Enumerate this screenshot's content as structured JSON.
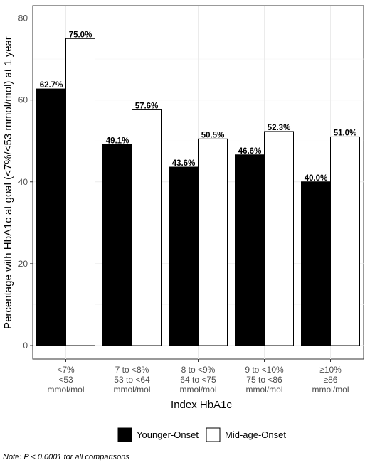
{
  "chart_data": {
    "type": "bar",
    "categories": [
      [
        "<7%",
        "<53",
        "mmol/mol"
      ],
      [
        "7 to <8%",
        "53 to <64",
        "mmol/mol"
      ],
      [
        "8 to <9%",
        "64 to <75",
        "mmol/mol"
      ],
      [
        "9 to <10%",
        "75 to <86",
        "mmol/mol"
      ],
      [
        "≥10%",
        "≥86",
        "mmol/mol"
      ]
    ],
    "series": [
      {
        "name": "Younger-Onset",
        "values": [
          62.7,
          49.1,
          43.6,
          46.6,
          40.0
        ],
        "labels": [
          "62.7%",
          "49.1%",
          "43.6%",
          "46.6%",
          "40.0%"
        ],
        "color": "#000000"
      },
      {
        "name": "Mid-age-Onset",
        "values": [
          75.0,
          57.6,
          50.5,
          52.3,
          51.0
        ],
        "labels": [
          "75.0%",
          "57.6%",
          "50.5%",
          "52.3%",
          "51.0%"
        ],
        "color": "#ffffff"
      }
    ],
    "xlabel": "Index HbA1c",
    "ylabel": "Percentage with HbA1c at goal (<7%/<53 mmol/mol) at 1 year",
    "ylim": [
      0,
      80
    ],
    "yticks": [
      "0",
      "20",
      "40",
      "60",
      "80"
    ],
    "grid": true,
    "legend_position": "bottom"
  },
  "note": "Note: P < 0.0001 for all comparisons"
}
